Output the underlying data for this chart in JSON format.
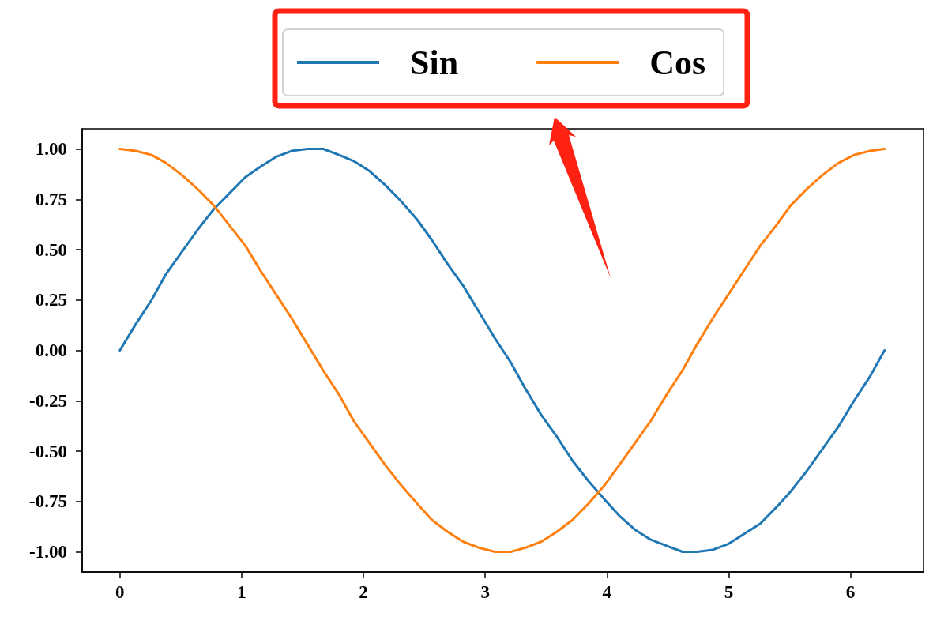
{
  "chart_data": {
    "type": "line",
    "x": [
      0.0,
      0.13,
      0.26,
      0.38,
      0.51,
      0.64,
      0.77,
      0.9,
      1.03,
      1.15,
      1.28,
      1.41,
      1.54,
      1.67,
      1.8,
      1.92,
      2.05,
      2.18,
      2.31,
      2.44,
      2.56,
      2.69,
      2.82,
      2.95,
      3.08,
      3.21,
      3.33,
      3.46,
      3.59,
      3.72,
      3.85,
      3.98,
      4.1,
      4.23,
      4.36,
      4.49,
      4.62,
      4.74,
      4.87,
      5.0,
      5.13,
      5.26,
      5.39,
      5.51,
      5.64,
      5.77,
      5.9,
      6.03,
      6.16,
      6.28
    ],
    "series": [
      {
        "name": "Sin",
        "color": "#1f77b4",
        "values": [
          0.0,
          0.13,
          0.25,
          0.38,
          0.49,
          0.6,
          0.7,
          0.78,
          0.86,
          0.91,
          0.96,
          0.99,
          1.0,
          1.0,
          0.97,
          0.94,
          0.89,
          0.82,
          0.74,
          0.65,
          0.55,
          0.43,
          0.32,
          0.19,
          0.06,
          -0.06,
          -0.19,
          -0.32,
          -0.43,
          -0.55,
          -0.65,
          -0.74,
          -0.82,
          -0.89,
          -0.94,
          -0.97,
          -1.0,
          -1.0,
          -0.99,
          -0.96,
          -0.91,
          -0.86,
          -0.78,
          -0.7,
          -0.6,
          -0.49,
          -0.38,
          -0.25,
          -0.13,
          0.0
        ]
      },
      {
        "name": "Cos",
        "color": "#ff7f0e",
        "values": [
          1.0,
          0.99,
          0.97,
          0.93,
          0.87,
          0.8,
          0.72,
          0.62,
          0.52,
          0.4,
          0.28,
          0.16,
          0.03,
          -0.1,
          -0.22,
          -0.35,
          -0.46,
          -0.57,
          -0.67,
          -0.76,
          -0.84,
          -0.9,
          -0.95,
          -0.98,
          -1.0,
          -1.0,
          -0.98,
          -0.95,
          -0.9,
          -0.84,
          -0.76,
          -0.67,
          -0.57,
          -0.46,
          -0.35,
          -0.22,
          -0.1,
          0.03,
          0.16,
          0.28,
          0.4,
          0.52,
          0.62,
          0.72,
          0.8,
          0.87,
          0.93,
          0.97,
          0.99,
          1.0
        ]
      }
    ],
    "xlim": [
      -0.31,
      6.6
    ],
    "ylim": [
      -1.1,
      1.1
    ],
    "xticks": [
      0,
      1,
      2,
      3,
      4,
      5,
      6
    ],
    "yticks": [
      {
        "value": -1,
        "label": "-1.00"
      },
      {
        "value": -0.75,
        "label": "-0.75"
      },
      {
        "value": -0.5,
        "label": "-0.50"
      },
      {
        "value": -0.25,
        "label": "-0.25"
      },
      {
        "value": 0,
        "label": "0.00"
      },
      {
        "value": 0.25,
        "label": "0.25"
      },
      {
        "value": 0.5,
        "label": "0.50"
      },
      {
        "value": 0.75,
        "label": "0.75"
      },
      {
        "value": 1,
        "label": "1.00"
      }
    ],
    "legend": "top"
  }
}
